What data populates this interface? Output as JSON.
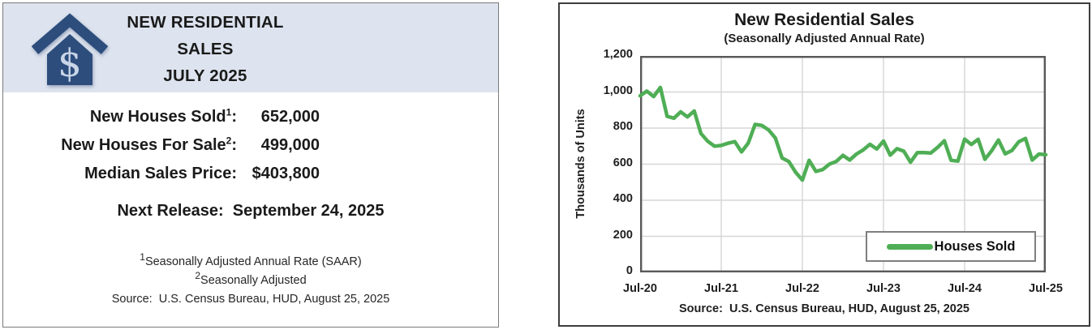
{
  "left_card": {
    "icon": "house-with-dollar-sign-icon",
    "title_lines": [
      "NEW RESIDENTIAL",
      "SALES",
      "JULY 2025"
    ],
    "stats": [
      {
        "pre": "New Houses Sold",
        "sup": "1",
        "post": ":",
        "value": "652,000"
      },
      {
        "pre": "New Houses For Sale",
        "sup": "2",
        "post": ":",
        "value": "499,000"
      },
      {
        "pre": "Median Sales Price",
        "sup": "",
        "post": ":",
        "value": "$403,800"
      }
    ],
    "next_release": "Next Release:  September 24, 2025",
    "footnotes": [
      {
        "sup": "1",
        "text": "Seasonally Adjusted Annual Rate (SAAR)"
      },
      {
        "sup": "2",
        "text": "Seasonally Adjusted"
      }
    ],
    "source": "Source:  U.S. Census Bureau, HUD, August 25, 2025",
    "colors": {
      "header_band": "#dde4ef",
      "icon_blue": "#2d4d7d",
      "icon_dollar": "#c9d6e8"
    }
  },
  "chart_data": {
    "type": "line",
    "title": "New Residential Sales",
    "subtitle": "(Seasonally Adjusted Annual Rate)",
    "ylabel": "Thousands of Units",
    "ylim": [
      0,
      1200
    ],
    "y_ticks": [
      "0",
      "200",
      "400",
      "600",
      "800",
      "1,000",
      "1,200"
    ],
    "x_tick_labels": [
      "Jul-20",
      "Jul-21",
      "Jul-22",
      "Jul-23",
      "Jul-24",
      "Jul-25"
    ],
    "x_start": "Jul-2020",
    "x_end": "Jul-2025",
    "frequency": "monthly",
    "grid": true,
    "legend": {
      "label": "Houses Sold",
      "position": "bottom-right"
    },
    "line_color": "#4fae55",
    "source": "Source:  U.S. Census Bureau, HUD, August 25, 2025",
    "series": [
      {
        "name": "Houses Sold",
        "values": [
          979,
          1005,
          975,
          1025,
          865,
          855,
          890,
          862,
          895,
          770,
          727,
          700,
          704,
          716,
          725,
          668,
          717,
          820,
          815,
          790,
          745,
          634,
          615,
          555,
          512,
          621,
          560,
          570,
          600,
          615,
          649,
          623,
          656,
          679,
          710,
          684,
          728,
          650,
          686,
          672,
          611,
          664,
          664,
          662,
          693,
          730,
          621,
          617,
          739,
          709,
          738,
          627,
          674,
          734,
          657,
          676,
          724,
          743,
          623,
          656,
          652
        ]
      }
    ]
  }
}
